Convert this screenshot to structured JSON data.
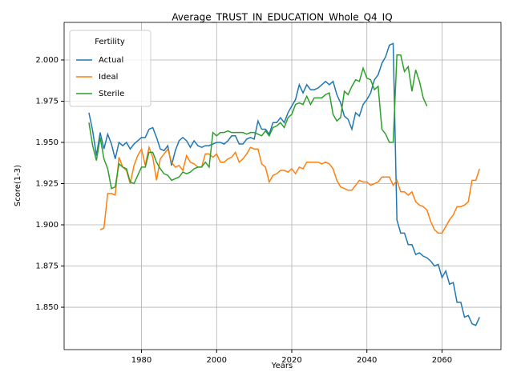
{
  "chart_data": {
    "type": "line",
    "title": "Average_TRUST_IN_EDUCATION_Whole_Q4_IQ",
    "x_label": "Years",
    "y_label": "Score(1-3)",
    "legend_title": "Fertility",
    "legend_position": "upper left",
    "grid": true,
    "x": [
      1966,
      1967,
      1968,
      1969,
      1970,
      1971,
      1972,
      1973,
      1974,
      1975,
      1976,
      1977,
      1978,
      1979,
      1980,
      1981,
      1982,
      1983,
      1984,
      1985,
      1986,
      1987,
      1988,
      1989,
      1990,
      1991,
      1992,
      1993,
      1994,
      1995,
      1996,
      1997,
      1998,
      1999,
      2000,
      2001,
      2002,
      2003,
      2004,
      2005,
      2006,
      2007,
      2008,
      2009,
      2010,
      2011,
      2012,
      2013,
      2014,
      2015,
      2016,
      2017,
      2018,
      2019,
      2020,
      2021,
      2022,
      2023,
      2024,
      2025,
      2026,
      2027,
      2028,
      2029,
      2030,
      2031,
      2032,
      2033,
      2034,
      2035,
      2036,
      2037,
      2038,
      2039,
      2040,
      2041,
      2042,
      2043,
      2044,
      2045,
      2046,
      2047,
      2048,
      2049,
      2050,
      2051,
      2052,
      2053,
      2054,
      2055,
      2056,
      2057,
      2058,
      2059,
      2060,
      2061,
      2062,
      2063,
      2064,
      2065,
      2066,
      2067,
      2068,
      2069,
      2070
    ],
    "series": [
      {
        "name": "Actual",
        "color": "#1f77b4",
        "values": [
          1.968,
          1.957,
          1.942,
          1.956,
          1.946,
          1.955,
          1.949,
          1.94,
          1.95,
          1.948,
          1.95,
          1.946,
          1.949,
          1.951,
          1.953,
          1.953,
          1.958,
          1.959,
          1.953,
          1.946,
          1.945,
          1.948,
          1.936,
          1.945,
          1.951,
          1.953,
          1.951,
          1.947,
          1.951,
          1.948,
          1.947,
          1.948,
          1.948,
          1.949,
          1.95,
          1.95,
          1.949,
          1.951,
          1.954,
          1.954,
          1.949,
          1.949,
          1.952,
          1.953,
          1.952,
          1.963,
          1.958,
          1.958,
          1.955,
          1.962,
          1.962,
          1.965,
          1.962,
          1.968,
          1.972,
          1.976,
          1.985,
          1.98,
          1.985,
          1.982,
          1.982,
          1.983,
          1.985,
          1.987,
          1.985,
          1.987,
          1.979,
          1.974,
          1.966,
          1.964,
          1.958,
          1.968,
          1.966,
          1.973,
          1.976,
          1.98,
          1.988,
          1.991,
          1.998,
          2.002,
          2.009,
          2.01,
          1.903,
          1.895,
          1.895,
          1.888,
          1.888,
          1.882,
          1.883,
          1.881,
          1.88,
          1.878,
          1.875,
          1.876,
          1.868,
          1.872,
          1.864,
          1.865,
          1.853,
          1.853,
          1.844,
          1.845,
          1.84,
          1.839,
          1.844
        ]
      },
      {
        "name": "Ideal",
        "color": "#ff7f0e",
        "values": [
          null,
          null,
          null,
          1.897,
          1.898,
          1.919,
          1.919,
          1.918,
          1.941,
          1.935,
          1.933,
          1.925,
          1.936,
          1.942,
          1.946,
          1.936,
          1.947,
          1.941,
          1.927,
          1.94,
          1.943,
          1.946,
          1.938,
          1.935,
          1.936,
          1.933,
          1.942,
          1.938,
          1.937,
          1.935,
          1.935,
          1.943,
          1.943,
          1.941,
          1.943,
          1.938,
          1.938,
          1.94,
          1.941,
          1.944,
          1.938,
          1.94,
          1.943,
          1.947,
          1.946,
          1.946,
          1.937,
          1.935,
          1.926,
          1.93,
          1.931,
          1.933,
          1.933,
          1.932,
          1.934,
          1.931,
          1.935,
          1.934,
          1.938,
          1.938,
          1.938,
          1.938,
          1.937,
          1.938,
          1.937,
          1.934,
          1.927,
          1.923,
          1.922,
          1.921,
          1.921,
          1.924,
          1.927,
          1.926,
          1.926,
          1.924,
          1.925,
          1.926,
          1.929,
          1.929,
          1.929,
          1.924,
          1.927,
          1.92,
          1.92,
          1.918,
          1.92,
          1.914,
          1.912,
          1.911,
          1.909,
          1.902,
          1.897,
          1.895,
          1.895,
          1.899,
          1.903,
          1.906,
          1.911,
          1.911,
          1.912,
          1.914,
          1.927,
          1.927,
          1.934
        ]
      },
      {
        "name": "Sterile",
        "color": "#2ca02c",
        "values": [
          1.962,
          1.948,
          1.939,
          1.953,
          1.94,
          1.934,
          1.922,
          1.923,
          1.937,
          1.935,
          1.934,
          1.926,
          1.925,
          1.93,
          1.935,
          1.935,
          1.944,
          1.944,
          1.938,
          1.934,
          1.931,
          1.93,
          1.927,
          1.928,
          1.929,
          1.932,
          1.931,
          1.932,
          1.934,
          1.935,
          1.935,
          1.938,
          1.935,
          1.956,
          1.954,
          1.956,
          1.956,
          1.957,
          1.956,
          1.956,
          1.956,
          1.956,
          1.955,
          1.956,
          1.956,
          1.955,
          1.954,
          1.957,
          1.954,
          1.959,
          1.96,
          1.962,
          1.959,
          1.965,
          1.967,
          1.973,
          1.974,
          1.973,
          1.978,
          1.973,
          1.977,
          1.977,
          1.977,
          1.979,
          1.98,
          1.967,
          1.963,
          1.965,
          1.981,
          1.979,
          1.984,
          1.988,
          1.987,
          1.995,
          1.989,
          1.988,
          1.982,
          1.984,
          1.958,
          1.955,
          1.95,
          1.95,
          2.003,
          2.003,
          1.993,
          1.996,
          1.981,
          1.994,
          1.987,
          1.977,
          1.972,
          null,
          null,
          null,
          null,
          null,
          null,
          null,
          null,
          null,
          null,
          null,
          null,
          null,
          null
        ]
      }
    ],
    "xlim": [
      1959.4,
      2075.7
    ],
    "xticks": [
      1980,
      2000,
      2020,
      2040,
      2060
    ],
    "ylim": [
      1.8243,
      2.0228
    ],
    "yticks": [
      {
        "value": 1.85,
        "label": "1.850"
      },
      {
        "value": 1.875,
        "label": "1.875"
      },
      {
        "value": 1.9,
        "label": "1.900"
      },
      {
        "value": 1.925,
        "label": "1.925"
      },
      {
        "value": 1.95,
        "label": "1.950"
      },
      {
        "value": 1.975,
        "label": "1.975"
      },
      {
        "value": 2.0,
        "label": "2.000"
      }
    ]
  }
}
